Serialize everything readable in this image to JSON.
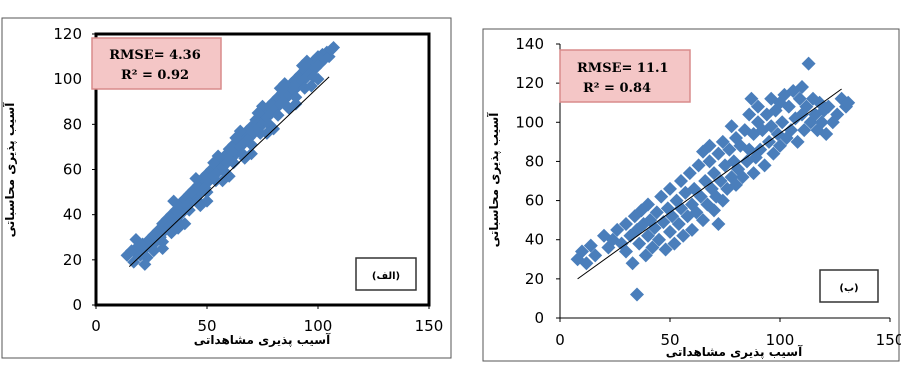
{
  "chart_data": [
    {
      "type": "scatter",
      "panel_label": "(الف)",
      "xlabel": "آسیب پذیری مشاهداتی",
      "ylabel": "آسیب پذیری محاسباتی",
      "xlim": [
        0,
        150
      ],
      "ylim": [
        0,
        120
      ],
      "xticks": [
        "0",
        "50",
        "100",
        "150"
      ],
      "yticks": [
        "0",
        "20",
        "40",
        "60",
        "80",
        "100",
        "120"
      ],
      "stats": {
        "rmse": "RMSE= 4.36",
        "r2": "R² = 0.92"
      },
      "trendline": {
        "x": [
          15,
          105
        ],
        "y": [
          17,
          101
        ]
      },
      "grid": false,
      "marker": "diamond",
      "point_color": "#4a7ebb",
      "stats_box_fill": "#f2c7c7",
      "stats_box_border": "#d98b8b",
      "points": [
        [
          14,
          22
        ],
        [
          16,
          24
        ],
        [
          17,
          19
        ],
        [
          18,
          23
        ],
        [
          19,
          26
        ],
        [
          20,
          22
        ],
        [
          21,
          27
        ],
        [
          22,
          25
        ],
        [
          23,
          21
        ],
        [
          24,
          29
        ],
        [
          25,
          27
        ],
        [
          26,
          31
        ],
        [
          27,
          28
        ],
        [
          28,
          33
        ],
        [
          29,
          30
        ],
        [
          30,
          36
        ],
        [
          31,
          33
        ],
        [
          32,
          38
        ],
        [
          33,
          35
        ],
        [
          34,
          40
        ],
        [
          35,
          37
        ],
        [
          36,
          42
        ],
        [
          37,
          39
        ],
        [
          38,
          45
        ],
        [
          39,
          41
        ],
        [
          40,
          47
        ],
        [
          41,
          44
        ],
        [
          42,
          49
        ],
        [
          43,
          46
        ],
        [
          44,
          51
        ],
        [
          45,
          48
        ],
        [
          46,
          53
        ],
        [
          47,
          50
        ],
        [
          48,
          56
        ],
        [
          49,
          52
        ],
        [
          50,
          58
        ],
        [
          51,
          55
        ],
        [
          52,
          60
        ],
        [
          53,
          57
        ],
        [
          54,
          62
        ],
        [
          55,
          59
        ],
        [
          56,
          64
        ],
        [
          57,
          61
        ],
        [
          58,
          66
        ],
        [
          59,
          63
        ],
        [
          60,
          69
        ],
        [
          61,
          65
        ],
        [
          62,
          71
        ],
        [
          63,
          67
        ],
        [
          64,
          73
        ],
        [
          65,
          70
        ],
        [
          66,
          75
        ],
        [
          67,
          72
        ],
        [
          68,
          77
        ],
        [
          69,
          74
        ],
        [
          70,
          79
        ],
        [
          71,
          76
        ],
        [
          72,
          82
        ],
        [
          73,
          78
        ],
        [
          74,
          84
        ],
        [
          75,
          80
        ],
        [
          76,
          86
        ],
        [
          77,
          83
        ],
        [
          78,
          88
        ],
        [
          79,
          85
        ],
        [
          80,
          90
        ],
        [
          81,
          87
        ],
        [
          82,
          92
        ],
        [
          83,
          89
        ],
        [
          84,
          94
        ],
        [
          85,
          91
        ],
        [
          86,
          96
        ],
        [
          87,
          93
        ],
        [
          88,
          98
        ],
        [
          89,
          95
        ],
        [
          90,
          100
        ],
        [
          91,
          97
        ],
        [
          92,
          102
        ],
        [
          93,
          99
        ],
        [
          94,
          104
        ],
        [
          95,
          101
        ],
        [
          96,
          106
        ],
        [
          97,
          103
        ],
        [
          98,
          108
        ],
        [
          99,
          105
        ],
        [
          100,
          110
        ],
        [
          101,
          107
        ],
        [
          102,
          111
        ],
        [
          103,
          109
        ],
        [
          104,
          112
        ],
        [
          105,
          110
        ],
        [
          106,
          113
        ],
        [
          107,
          114
        ],
        [
          18,
          29
        ],
        [
          22,
          18
        ],
        [
          26,
          24
        ],
        [
          30,
          28
        ],
        [
          34,
          32
        ],
        [
          38,
          36
        ],
        [
          42,
          42
        ],
        [
          46,
          46
        ],
        [
          50,
          50
        ],
        [
          54,
          55
        ],
        [
          58,
          59
        ],
        [
          62,
          63
        ],
        [
          66,
          67
        ],
        [
          70,
          71
        ],
        [
          74,
          76
        ],
        [
          78,
          80
        ],
        [
          82,
          84
        ],
        [
          86,
          88
        ],
        [
          90,
          92
        ],
        [
          94,
          96
        ],
        [
          98,
          101
        ],
        [
          35,
          46
        ],
        [
          45,
          56
        ],
        [
          55,
          66
        ],
        [
          65,
          77
        ],
        [
          75,
          88
        ],
        [
          85,
          98
        ],
        [
          95,
          108
        ],
        [
          30,
          25
        ],
        [
          40,
          36
        ],
        [
          50,
          46
        ],
        [
          60,
          57
        ],
        [
          70,
          67
        ],
        [
          80,
          78
        ],
        [
          90,
          89
        ],
        [
          100,
          100
        ],
        [
          37,
          34
        ],
        [
          43,
          50
        ],
        [
          47,
          44
        ],
        [
          53,
          63
        ],
        [
          57,
          55
        ],
        [
          63,
          74
        ],
        [
          67,
          65
        ],
        [
          73,
          85
        ],
        [
          77,
          76
        ],
        [
          83,
          96
        ],
        [
          87,
          87
        ],
        [
          93,
          106
        ],
        [
          97,
          97
        ]
      ]
    },
    {
      "type": "scatter",
      "panel_label": "(ب)",
      "xlabel": "آسیب پذیری مشاهداتی",
      "ylabel": "آسیب پذیری محاسباتی",
      "xlim": [
        0,
        150
      ],
      "ylim": [
        0,
        140
      ],
      "xticks": [
        "0",
        "50",
        "100",
        "150"
      ],
      "yticks": [
        "0",
        "20",
        "40",
        "60",
        "80",
        "100",
        "120",
        "140"
      ],
      "stats": {
        "rmse": "RMSE= 11.1",
        "r2": "R² = 0.84"
      },
      "trendline": {
        "x": [
          8,
          128
        ],
        "y": [
          20,
          117
        ]
      },
      "grid": false,
      "marker": "diamond",
      "point_color": "#4a7ebb",
      "stats_box_fill": "#f2c7c7",
      "stats_box_border": "#d98b8b",
      "points": [
        [
          8,
          30
        ],
        [
          10,
          34
        ],
        [
          12,
          28
        ],
        [
          14,
          37
        ],
        [
          16,
          32
        ],
        [
          20,
          42
        ],
        [
          22,
          36
        ],
        [
          24,
          40
        ],
        [
          26,
          45
        ],
        [
          28,
          38
        ],
        [
          30,
          34
        ],
        [
          30,
          48
        ],
        [
          32,
          42
        ],
        [
          33,
          28
        ],
        [
          34,
          52
        ],
        [
          35,
          45
        ],
        [
          35,
          12
        ],
        [
          36,
          38
        ],
        [
          37,
          55
        ],
        [
          38,
          48
        ],
        [
          39,
          32
        ],
        [
          40,
          42
        ],
        [
          40,
          58
        ],
        [
          41,
          50
        ],
        [
          42,
          36
        ],
        [
          43,
          46
        ],
        [
          44,
          54
        ],
        [
          45,
          40
        ],
        [
          46,
          62
        ],
        [
          47,
          49
        ],
        [
          48,
          35
        ],
        [
          49,
          56
        ],
        [
          50,
          44
        ],
        [
          50,
          66
        ],
        [
          51,
          52
        ],
        [
          52,
          38
        ],
        [
          53,
          60
        ],
        [
          54,
          48
        ],
        [
          55,
          70
        ],
        [
          55,
          56
        ],
        [
          56,
          42
        ],
        [
          57,
          64
        ],
        [
          58,
          52
        ],
        [
          59,
          74
        ],
        [
          60,
          58
        ],
        [
          60,
          45
        ],
        [
          61,
          66
        ],
        [
          62,
          54
        ],
        [
          63,
          78
        ],
        [
          64,
          62
        ],
        [
          65,
          50
        ],
        [
          65,
          85
        ],
        [
          66,
          70
        ],
        [
          67,
          58
        ],
        [
          68,
          80
        ],
        [
          68,
          88
        ],
        [
          69,
          66
        ],
        [
          70,
          55
        ],
        [
          70,
          74
        ],
        [
          71,
          62
        ],
        [
          72,
          84
        ],
        [
          72,
          48
        ],
        [
          73,
          70
        ],
        [
          74,
          90
        ],
        [
          74,
          60
        ],
        [
          75,
          78
        ],
        [
          76,
          66
        ],
        [
          77,
          86
        ],
        [
          78,
          72
        ],
        [
          78,
          98
        ],
        [
          79,
          80
        ],
        [
          80,
          68
        ],
        [
          80,
          92
        ],
        [
          81,
          76
        ],
        [
          82,
          88
        ],
        [
          83,
          72
        ],
        [
          84,
          96
        ],
        [
          85,
          80
        ],
        [
          86,
          104
        ],
        [
          86,
          86
        ],
        [
          87,
          112
        ],
        [
          88,
          74
        ],
        [
          88,
          94
        ],
        [
          89,
          82
        ],
        [
          90,
          100
        ],
        [
          90,
          108
        ],
        [
          91,
          86
        ],
        [
          92,
          96
        ],
        [
          93,
          78
        ],
        [
          94,
          104
        ],
        [
          95,
          90
        ],
        [
          96,
          112
        ],
        [
          96,
          98
        ],
        [
          97,
          84
        ],
        [
          98,
          106
        ],
        [
          99,
          94
        ],
        [
          100,
          110
        ],
        [
          100,
          88
        ],
        [
          101,
          100
        ],
        [
          102,
          114
        ],
        [
          103,
          92
        ],
        [
          104,
          108
        ],
        [
          105,
          96
        ],
        [
          106,
          116
        ],
        [
          107,
          102
        ],
        [
          108,
          90
        ],
        [
          109,
          112
        ],
        [
          110,
          104
        ],
        [
          110,
          118
        ],
        [
          111,
          96
        ],
        [
          112,
          108
        ],
        [
          113,
          130
        ],
        [
          114,
          100
        ],
        [
          115,
          112
        ],
        [
          116,
          104
        ],
        [
          117,
          96
        ],
        [
          118,
          110
        ],
        [
          119,
          100
        ],
        [
          120,
          106
        ],
        [
          121,
          94
        ],
        [
          122,
          108
        ],
        [
          124,
          100
        ],
        [
          126,
          104
        ],
        [
          128,
          112
        ],
        [
          130,
          108
        ],
        [
          131,
          110
        ]
      ]
    }
  ]
}
